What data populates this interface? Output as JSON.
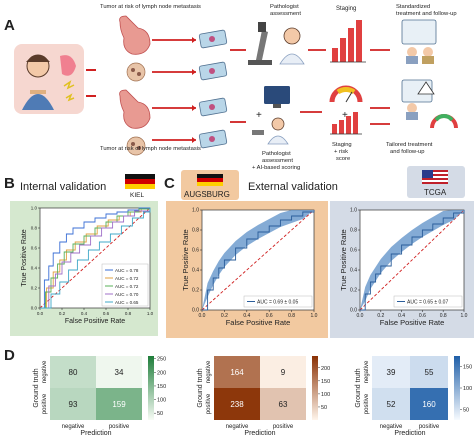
{
  "panel_labels": {
    "a": "A",
    "b": "B",
    "c": "C",
    "d": "D"
  },
  "panel_a": {
    "top_caption": "Tumor at risk of lymph node metastasis",
    "bottom_caption": "Tumor at risk of lymph node metastasis",
    "pathologist_assessment": "Pathologist assessment",
    "staging": "Staging",
    "standardized_treatment_1": "Standardized",
    "standardized_treatment_2": "treatment and follow-up",
    "pathologist_ai_1": "Pathologist",
    "pathologist_ai_2": "assessment",
    "pathologist_ai_3": "+ AI-based scoring",
    "staging_risk_1": "Staging",
    "staging_risk_2": "+ risk",
    "staging_risk_3": "score",
    "tailored_1": "Tailored treatment",
    "tailored_2": "and follow-up"
  },
  "panel_b": {
    "title": "Internal validation",
    "cohort": "KIEL",
    "colors": {
      "bg": "#d5e8cf",
      "border": "#8fbf82"
    }
  },
  "panel_c": {
    "title": "External validation",
    "cohort_left": "AUGSBURG",
    "cohort_right": "TCGA",
    "colors": {
      "left_bg": "#f2c9a0",
      "right_bg": "#d4dbe6",
      "roc_band": "#5b8fc7",
      "roc_line": "#2a5d9a"
    }
  },
  "chart_data": [
    {
      "type": "line",
      "panel": "B",
      "xlabel": "False Positive Rate",
      "ylabel": "True Positive Rate",
      "xlim": [
        0,
        1
      ],
      "ylim": [
        0,
        1
      ],
      "x_ticks": [
        "0.0",
        "0.2",
        "0.4",
        "0.6",
        "0.8",
        "1.0"
      ],
      "y_ticks": [
        "0.0",
        "0.2",
        "0.4",
        "0.6",
        "0.8",
        "1.0"
      ],
      "legend_position": "bottom-right",
      "series": [
        {
          "name": "AUC = 0.78",
          "color": "#3b6fd6",
          "x": [
            0,
            0.04,
            0.08,
            0.12,
            0.18,
            0.24,
            0.3,
            0.4,
            0.5,
            0.6,
            0.7,
            0.8,
            0.9,
            1
          ],
          "y": [
            0,
            0.28,
            0.42,
            0.55,
            0.66,
            0.74,
            0.8,
            0.86,
            0.9,
            0.94,
            0.96,
            0.98,
            1,
            1
          ]
        },
        {
          "name": "AUC = 0.72",
          "color": "#e0a040",
          "x": [
            0,
            0.06,
            0.12,
            0.18,
            0.24,
            0.32,
            0.42,
            0.52,
            0.62,
            0.72,
            0.82,
            0.92,
            1
          ],
          "y": [
            0,
            0.2,
            0.36,
            0.48,
            0.58,
            0.66,
            0.74,
            0.82,
            0.88,
            0.92,
            0.96,
            0.99,
            1
          ]
        },
        {
          "name": "AUC = 0.72",
          "color": "#59b05a",
          "x": [
            0,
            0.05,
            0.1,
            0.16,
            0.22,
            0.3,
            0.4,
            0.5,
            0.6,
            0.7,
            0.8,
            0.9,
            1
          ],
          "y": [
            0,
            0.16,
            0.3,
            0.44,
            0.56,
            0.64,
            0.72,
            0.8,
            0.86,
            0.92,
            0.96,
            0.99,
            1
          ]
        },
        {
          "name": "AUC = 0.70",
          "color": "#a070c8",
          "x": [
            0,
            0.08,
            0.14,
            0.2,
            0.28,
            0.36,
            0.46,
            0.56,
            0.66,
            0.76,
            0.86,
            1
          ],
          "y": [
            0,
            0.22,
            0.34,
            0.46,
            0.55,
            0.63,
            0.72,
            0.8,
            0.86,
            0.92,
            0.97,
            1
          ]
        },
        {
          "name": "AUC = 0.65",
          "color": "#40a8c8",
          "x": [
            0,
            0.1,
            0.18,
            0.26,
            0.34,
            0.44,
            0.54,
            0.64,
            0.74,
            0.84,
            0.94,
            1
          ],
          "y": [
            0,
            0.14,
            0.26,
            0.38,
            0.48,
            0.58,
            0.66,
            0.74,
            0.82,
            0.9,
            0.96,
            1
          ]
        }
      ]
    },
    {
      "type": "line",
      "panel": "C-left",
      "xlabel": "False Positive Rate",
      "ylabel": "True Positive Rate",
      "xlim": [
        0,
        1
      ],
      "ylim": [
        0,
        1
      ],
      "x_ticks": [
        "0.0",
        "0.2",
        "0.4",
        "0.6",
        "0.8",
        "1.0"
      ],
      "y_ticks": [
        "0.0",
        "0.2",
        "0.4",
        "0.6",
        "0.8",
        "1.0"
      ],
      "legend": "AUC = 0.69 ± 0.05",
      "legend_position": "bottom-right",
      "series": [
        {
          "name": "AUC = 0.69 ± 0.05",
          "x": [
            0,
            0.05,
            0.1,
            0.15,
            0.2,
            0.3,
            0.4,
            0.5,
            0.6,
            0.7,
            0.8,
            0.9,
            1
          ],
          "y": [
            0,
            0.2,
            0.32,
            0.42,
            0.5,
            0.62,
            0.71,
            0.78,
            0.84,
            0.9,
            0.94,
            0.98,
            1
          ]
        }
      ]
    },
    {
      "type": "line",
      "panel": "C-right",
      "xlabel": "False Positive Rate",
      "ylabel": "True Positive Rate",
      "xlim": [
        0,
        1
      ],
      "ylim": [
        0,
        1
      ],
      "x_ticks": [
        "0.0",
        "0.2",
        "0.4",
        "0.6",
        "0.8",
        "1.0"
      ],
      "y_ticks": [
        "0.0",
        "0.2",
        "0.4",
        "0.6",
        "0.8",
        "1.0"
      ],
      "legend": "AUC = 0.65 ± 0.07",
      "legend_position": "bottom-right",
      "series": [
        {
          "name": "AUC = 0.65 ± 0.07",
          "x": [
            0,
            0.05,
            0.1,
            0.15,
            0.2,
            0.3,
            0.4,
            0.5,
            0.6,
            0.7,
            0.8,
            0.9,
            1
          ],
          "y": [
            0,
            0.16,
            0.28,
            0.36,
            0.44,
            0.56,
            0.65,
            0.73,
            0.8,
            0.86,
            0.92,
            0.97,
            1
          ]
        }
      ]
    },
    {
      "type": "heatmap",
      "panel": "D-left",
      "xlabel": "Prediction",
      "ylabel": "Ground truth",
      "x_categories": [
        "negative",
        "positive"
      ],
      "y_categories": [
        "negative",
        "positive"
      ],
      "values": [
        [
          80,
          34
        ],
        [
          93,
          159
        ]
      ],
      "colorbar_ticks": [
        "250",
        "200",
        "150",
        "100",
        "50"
      ],
      "vmin": 25,
      "vmax": 260,
      "colormap": [
        "#f7fcf5",
        "#1e7d3a"
      ]
    },
    {
      "type": "heatmap",
      "panel": "D-middle",
      "xlabel": "Prediction",
      "ylabel": "Ground truth",
      "x_categories": [
        "negative",
        "positive"
      ],
      "y_categories": [
        "negative",
        "positive"
      ],
      "values": [
        [
          164,
          9
        ],
        [
          238,
          63
        ]
      ],
      "colorbar_ticks": [
        "200",
        "150",
        "100",
        "50"
      ],
      "vmin": 0,
      "vmax": 245,
      "colormap": [
        "#fff5eb",
        "#8a3104"
      ]
    },
    {
      "type": "heatmap",
      "panel": "D-right",
      "xlabel": "Prediction",
      "ylabel": "Ground truth",
      "x_categories": [
        "negative",
        "positive"
      ],
      "y_categories": [
        "negative",
        "positive"
      ],
      "values": [
        [
          39,
          55
        ],
        [
          52,
          160
        ]
      ],
      "colorbar_ticks": [
        "150",
        "100",
        "50"
      ],
      "vmin": 25,
      "vmax": 175,
      "colormap": [
        "#f7fbff",
        "#1f5fa8"
      ]
    }
  ]
}
